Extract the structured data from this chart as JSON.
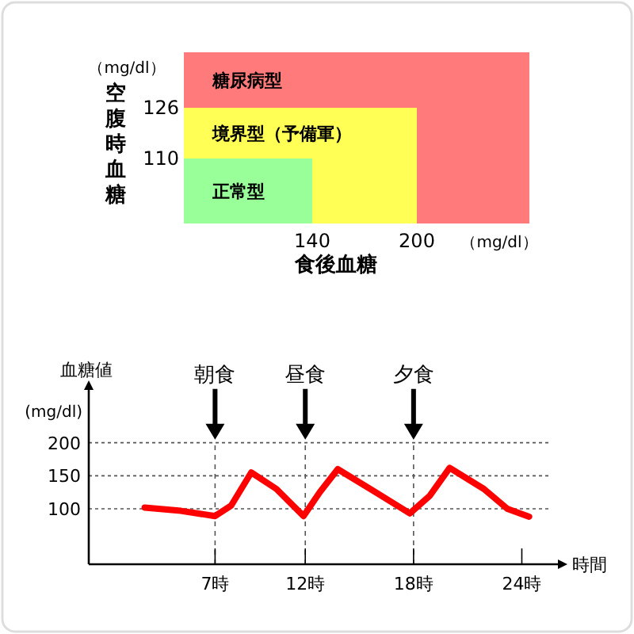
{
  "chart_data": [
    {
      "type": "other",
      "categories": [
        "糖尿病型",
        "境界型（予備軍）",
        "正常型"
      ],
      "values": [
        null,
        126,
        110
      ],
      "colors": [
        "#ff7b7b",
        "#ffff55",
        "#99ff99"
      ],
      "data_labels": true,
      "xlabel": "食後血糖",
      "ylabel": "空腹時血糖",
      "annotations": [
        "（mg/dl）",
        "（mg/dl）",
        "200",
        "140"
      ]
    },
    {
      "type": "line",
      "x": [
        3.1,
        5.1,
        7,
        7.9,
        9,
        10.4,
        11.9,
        12.8,
        13.8,
        15.9,
        17.8,
        18.9,
        20,
        21.9,
        23.2,
        24.4
      ],
      "series": [
        {
          "color": "#ff0000",
          "values": [
            102,
            97,
            89,
            105,
            155,
            130,
            89,
            125,
            160,
            125,
            93,
            120,
            162,
            130,
            100,
            88
          ]
        }
      ],
      "xlim": [
        0,
        26
      ],
      "ylim": [
        16,
        280
      ],
      "xticks": [
        {
          "value": 7,
          "label": "7時"
        },
        {
          "value": 12,
          "label": "12時"
        },
        {
          "value": 18,
          "label": "18時"
        },
        {
          "value": 24,
          "label": "24時"
        }
      ],
      "yticks": [
        100,
        150,
        200
      ],
      "ylabel": "血糖値",
      "xlabel": "時間",
      "annotations": [
        "(mg/dl)"
      ],
      "grid": "y",
      "ref_lines": [
        {
          "axis": "x",
          "value": 7,
          "label": "朝食",
          "line_style": "dashed"
        },
        {
          "axis": "x",
          "value": 12,
          "label": "昼食",
          "line_style": "dashed"
        },
        {
          "axis": "x",
          "value": 18,
          "label": "夕食",
          "line_style": "dashed"
        }
      ]
    }
  ]
}
